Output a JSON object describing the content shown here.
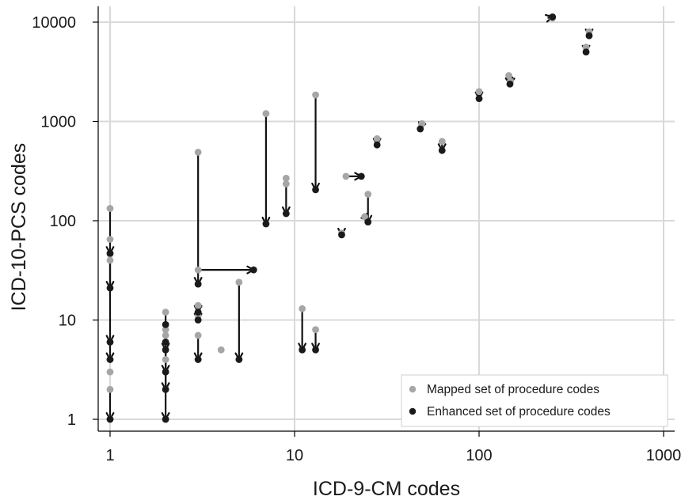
{
  "chart_data": {
    "type": "scatter",
    "xlabel": "ICD-9-CM codes",
    "ylabel": "ICD-10-PCS codes",
    "x_scale": "log",
    "y_scale": "log",
    "xlim": [
      0.95,
      1300
    ],
    "ylim": [
      0.8,
      15000
    ],
    "x_ticks": [
      1,
      10,
      100,
      1000
    ],
    "x_tick_labels": [
      "1",
      "10",
      "100",
      "1000"
    ],
    "y_ticks": [
      1,
      10,
      100,
      1000,
      10000
    ],
    "y_tick_labels": [
      "1",
      "10",
      "100",
      "1000",
      "10000"
    ],
    "grid": true,
    "legend_position": "bottom-right",
    "series": [
      {
        "name": "Mapped set of procedure codes",
        "color": "#a6a6a6",
        "points": [
          [
            1,
            1
          ],
          [
            1,
            2
          ],
          [
            1,
            3
          ],
          [
            1,
            4
          ],
          [
            1,
            6
          ],
          [
            1,
            40
          ],
          [
            1,
            46
          ],
          [
            1,
            65
          ],
          [
            1,
            133
          ],
          [
            2,
            1
          ],
          [
            2,
            2
          ],
          [
            2,
            3
          ],
          [
            2,
            4
          ],
          [
            2,
            5
          ],
          [
            2,
            6
          ],
          [
            2,
            7
          ],
          [
            2,
            8
          ],
          [
            2,
            12
          ],
          [
            3,
            4
          ],
          [
            3,
            7
          ],
          [
            3,
            11
          ],
          [
            3,
            12
          ],
          [
            3,
            14
          ],
          [
            3,
            32
          ],
          [
            3,
            490
          ],
          [
            4,
            5
          ],
          [
            5,
            24
          ],
          [
            7,
            1200
          ],
          [
            9,
            235
          ],
          [
            9,
            268
          ],
          [
            11,
            13
          ],
          [
            13,
            8
          ],
          [
            13,
            1850
          ],
          [
            18,
            75
          ],
          [
            19,
            280
          ],
          [
            24,
            110
          ],
          [
            25,
            185
          ],
          [
            28,
            670
          ],
          [
            49,
            950
          ],
          [
            63,
            630
          ],
          [
            100,
            2000
          ],
          [
            145,
            2900
          ],
          [
            148,
            2550
          ],
          [
            250,
            11000
          ],
          [
            380,
            5600
          ],
          [
            395,
            8000
          ]
        ]
      },
      {
        "name": "Enhanced set of procedure codes",
        "color": "#1a1a1a",
        "points": [
          [
            1,
            1
          ],
          [
            1,
            4
          ],
          [
            1,
            6
          ],
          [
            1,
            21
          ],
          [
            1,
            47
          ],
          [
            2,
            1
          ],
          [
            2,
            2
          ],
          [
            2,
            3
          ],
          [
            2,
            5
          ],
          [
            2,
            6
          ],
          [
            2,
            9
          ],
          [
            3,
            4
          ],
          [
            3,
            10
          ],
          [
            3,
            12
          ],
          [
            3,
            23
          ],
          [
            5,
            4
          ],
          [
            6,
            32
          ],
          [
            7,
            93
          ],
          [
            9,
            118
          ],
          [
            11,
            5
          ],
          [
            13,
            5
          ],
          [
            13,
            205
          ],
          [
            18,
            72
          ],
          [
            23,
            280
          ],
          [
            25,
            97
          ],
          [
            28,
            580
          ],
          [
            48,
            840
          ],
          [
            63,
            510
          ],
          [
            100,
            1700
          ],
          [
            147,
            2380
          ],
          [
            250,
            11300
          ],
          [
            380,
            5000
          ],
          [
            395,
            7300
          ]
        ]
      }
    ],
    "arrows": [
      [
        [
          1,
          133
        ],
        [
          1,
          47
        ]
      ],
      [
        [
          1,
          46
        ],
        [
          1,
          21
        ]
      ],
      [
        [
          1,
          40
        ],
        [
          1,
          6
        ]
      ],
      [
        [
          1,
          6
        ],
        [
          1,
          4
        ]
      ],
      [
        [
          1,
          2
        ],
        [
          1,
          1
        ]
      ],
      [
        [
          2,
          12
        ],
        [
          2,
          1
        ]
      ],
      [
        [
          2,
          8
        ],
        [
          2,
          5
        ]
      ],
      [
        [
          2,
          7
        ],
        [
          2,
          3
        ]
      ],
      [
        [
          2,
          4
        ],
        [
          2,
          2
        ]
      ],
      [
        [
          3,
          490
        ],
        [
          3,
          23
        ]
      ],
      [
        [
          3,
          32
        ],
        [
          6,
          32
        ]
      ],
      [
        [
          3,
          14
        ],
        [
          3,
          12
        ]
      ],
      [
        [
          3,
          12
        ],
        [
          3,
          10
        ]
      ],
      [
        [
          3,
          7
        ],
        [
          3,
          4
        ]
      ],
      [
        [
          5,
          24
        ],
        [
          5,
          4
        ]
      ],
      [
        [
          7,
          1200
        ],
        [
          7,
          93
        ]
      ],
      [
        [
          9,
          268
        ],
        [
          9,
          118
        ]
      ],
      [
        [
          11,
          13
        ],
        [
          11,
          5
        ]
      ],
      [
        [
          13,
          8
        ],
        [
          13,
          5
        ]
      ],
      [
        [
          13,
          1850
        ],
        [
          13,
          205
        ]
      ],
      [
        [
          18,
          75
        ],
        [
          18,
          72
        ]
      ],
      [
        [
          19,
          280
        ],
        [
          23,
          280
        ]
      ],
      [
        [
          25,
          185
        ],
        [
          25,
          97
        ]
      ],
      [
        [
          24,
          110
        ],
        [
          25,
          100
        ]
      ],
      [
        [
          28,
          670
        ],
        [
          28,
          580
        ]
      ],
      [
        [
          49,
          950
        ],
        [
          48,
          840
        ]
      ],
      [
        [
          63,
          630
        ],
        [
          63,
          510
        ]
      ],
      [
        [
          100,
          2000
        ],
        [
          100,
          1700
        ]
      ],
      [
        [
          145,
          2900
        ],
        [
          147,
          2380
        ]
      ],
      [
        [
          148,
          2550
        ],
        [
          147,
          2380
        ]
      ],
      [
        [
          235,
          11000
        ],
        [
          250,
          11300
        ]
      ],
      [
        [
          380,
          5600
        ],
        [
          380,
          5000
        ]
      ],
      [
        [
          395,
          8000
        ],
        [
          395,
          7300
        ]
      ]
    ]
  }
}
